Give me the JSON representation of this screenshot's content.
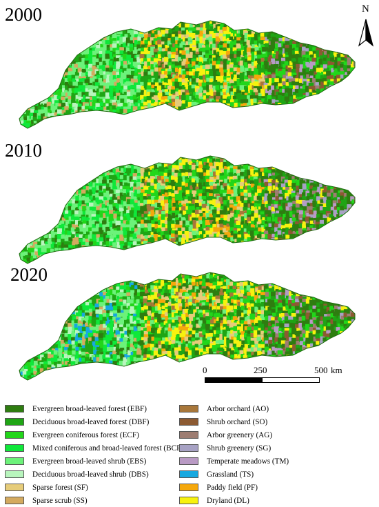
{
  "panels": [
    {
      "year": "2000"
    },
    {
      "year": "2010"
    },
    {
      "year": "2020"
    }
  ],
  "north_arrow": {
    "label": "N"
  },
  "scale_bar": {
    "ticks": [
      "0",
      "250",
      "500"
    ],
    "unit": "km"
  },
  "colors": {
    "EBF": "#2e7d10",
    "DBF": "#1fa515",
    "ECF": "#22d61a",
    "BCF": "#0fe83a",
    "EBS": "#6cf27a",
    "DBS": "#b8f5bd",
    "SF": "#e6cc7a",
    "SS": "#d4aa5f",
    "AO": "#a8773a",
    "SO": "#8c5a32",
    "AG": "#9e7d72",
    "SG": "#a7a2c4",
    "TM": "#b99ac4",
    "TS": "#16a8e0",
    "PF": "#f5a80c",
    "DL": "#f7f20f"
  },
  "legend": {
    "left": [
      {
        "code": "EBF",
        "label": "Evergreen broad-leaved forest (EBF)"
      },
      {
        "code": "DBF",
        "label": "Deciduous broad-leaved forest (DBF)"
      },
      {
        "code": "ECF",
        "label": "Evergreen coniferous forest (ECF)"
      },
      {
        "code": "BCF",
        "label": "Mixed coniferous and broad-leaved forest (BCF)"
      },
      {
        "code": "EBS",
        "label": "Evergreen broad-leaved shrub (EBS)"
      },
      {
        "code": "DBS",
        "label": "Deciduous broad-leaved shrub (DBS)"
      },
      {
        "code": "SF",
        "label": "Sparse forest (SF)"
      },
      {
        "code": "SS",
        "label": "Sparse scrub (SS)"
      }
    ],
    "right": [
      {
        "code": "AO",
        "label": "Arbor orchard (AO)"
      },
      {
        "code": "SO",
        "label": "Shrub orchard (SO)"
      },
      {
        "code": "AG",
        "label": "Arbor greenery (AG)"
      },
      {
        "code": "SG",
        "label": "Shrub greenery (SG)"
      },
      {
        "code": "TM",
        "label": "Temperate meadows (TM)"
      },
      {
        "code": "TS",
        "label": "Grassland (TS)"
      },
      {
        "code": "PF",
        "label": "Paddy field (PF)"
      },
      {
        "code": "DL",
        "label": "Dryland (DL)"
      }
    ]
  }
}
